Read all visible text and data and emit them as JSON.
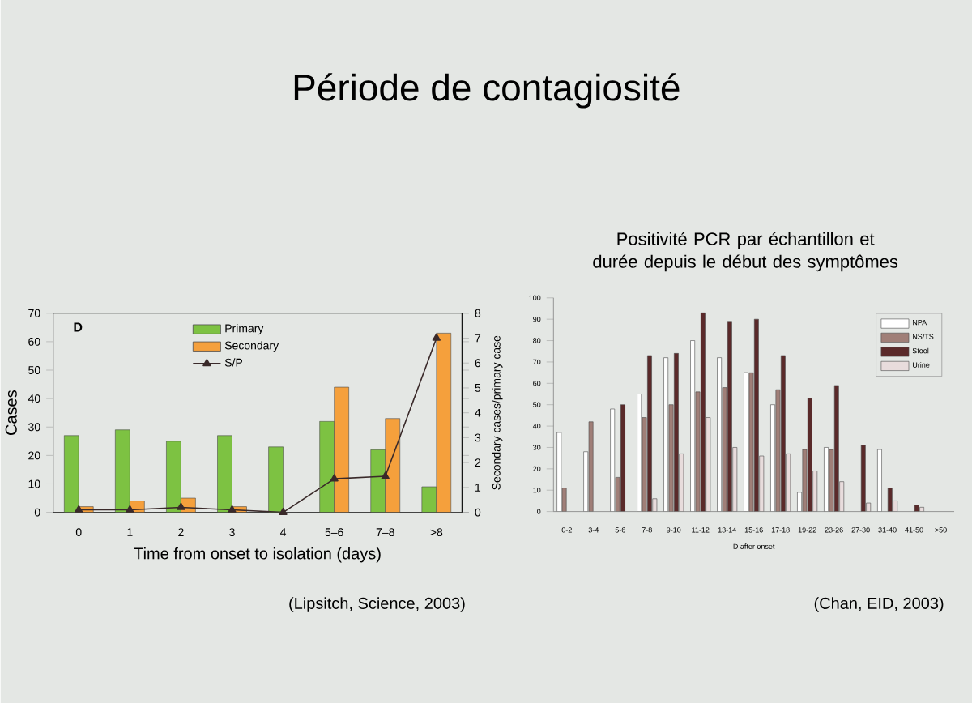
{
  "chart_data": [
    {
      "type": "bar",
      "title": "Période de contagiosité",
      "xlabel": "Time from onset to isolation (days)",
      "ylabel": "Cases",
      "y2label": "Secondary cases/primary case",
      "categories": [
        "0",
        "1",
        "2",
        "3",
        "4",
        "5–6",
        "7–8",
        ">8"
      ],
      "series": [
        {
          "name": "Primary",
          "color": "#7dc242",
          "values": [
            27,
            29,
            25,
            27,
            23,
            32,
            22,
            9
          ]
        },
        {
          "name": "Secondary",
          "color": "#f5a03c",
          "values": [
            2,
            4,
            5,
            2,
            0,
            44,
            33,
            63
          ]
        },
        {
          "name": "S/P",
          "type": "line",
          "axis": "y2",
          "marker": "triangle",
          "color": "#3a2a2a",
          "values": [
            0.1,
            0.1,
            0.2,
            0.1,
            0,
            1.35,
            1.45,
            7
          ]
        }
      ],
      "ylim": [
        0,
        70
      ],
      "yticks": [
        0,
        10,
        20,
        30,
        40,
        50,
        60,
        70
      ],
      "y2lim": [
        0,
        8
      ],
      "y2ticks": [
        0,
        1,
        2,
        3,
        4,
        5,
        6,
        7,
        8
      ],
      "legend": "top",
      "annotations": [
        "D",
        "(Lipsitch, Science, 2003)"
      ]
    },
    {
      "type": "bar",
      "title": "Positivité PCR par échantillon et durée depuis le début des symptômes",
      "xlabel": "D after onset",
      "categories": [
        "0-2",
        "3-4",
        "5-6",
        "7-8",
        "9-10",
        "11-12",
        "13-14",
        "15-16",
        "17-18",
        "19-22",
        "23-26",
        "27-30",
        "31-40",
        "41-50",
        ">50"
      ],
      "series": [
        {
          "name": "NPA",
          "color": "#ffffff",
          "values": [
            37,
            28,
            48,
            55,
            72,
            80,
            72,
            65,
            50,
            9,
            30,
            null,
            29,
            null,
            null
          ]
        },
        {
          "name": "NS/TS",
          "color": "#a07f78",
          "values": [
            11,
            42,
            16,
            44,
            50,
            56,
            58,
            65,
            57,
            29,
            29,
            null,
            null,
            null,
            null
          ]
        },
        {
          "name": "Stool",
          "color": "#5a2a2a",
          "values": [
            null,
            null,
            50,
            73,
            74,
            93,
            89,
            90,
            73,
            53,
            59,
            31,
            11,
            3,
            null
          ]
        },
        {
          "name": "Urine",
          "color": "#e8dcdc",
          "values": [
            null,
            null,
            null,
            6,
            27,
            44,
            30,
            26,
            27,
            19,
            14,
            4,
            5,
            2,
            null
          ]
        }
      ],
      "ylim": [
        0,
        100
      ],
      "yticks": [
        0,
        10,
        20,
        30,
        40,
        50,
        60,
        70,
        80,
        90,
        100
      ],
      "legend": "right",
      "annotations": [
        "(Chan, EID, 2003)"
      ]
    }
  ]
}
